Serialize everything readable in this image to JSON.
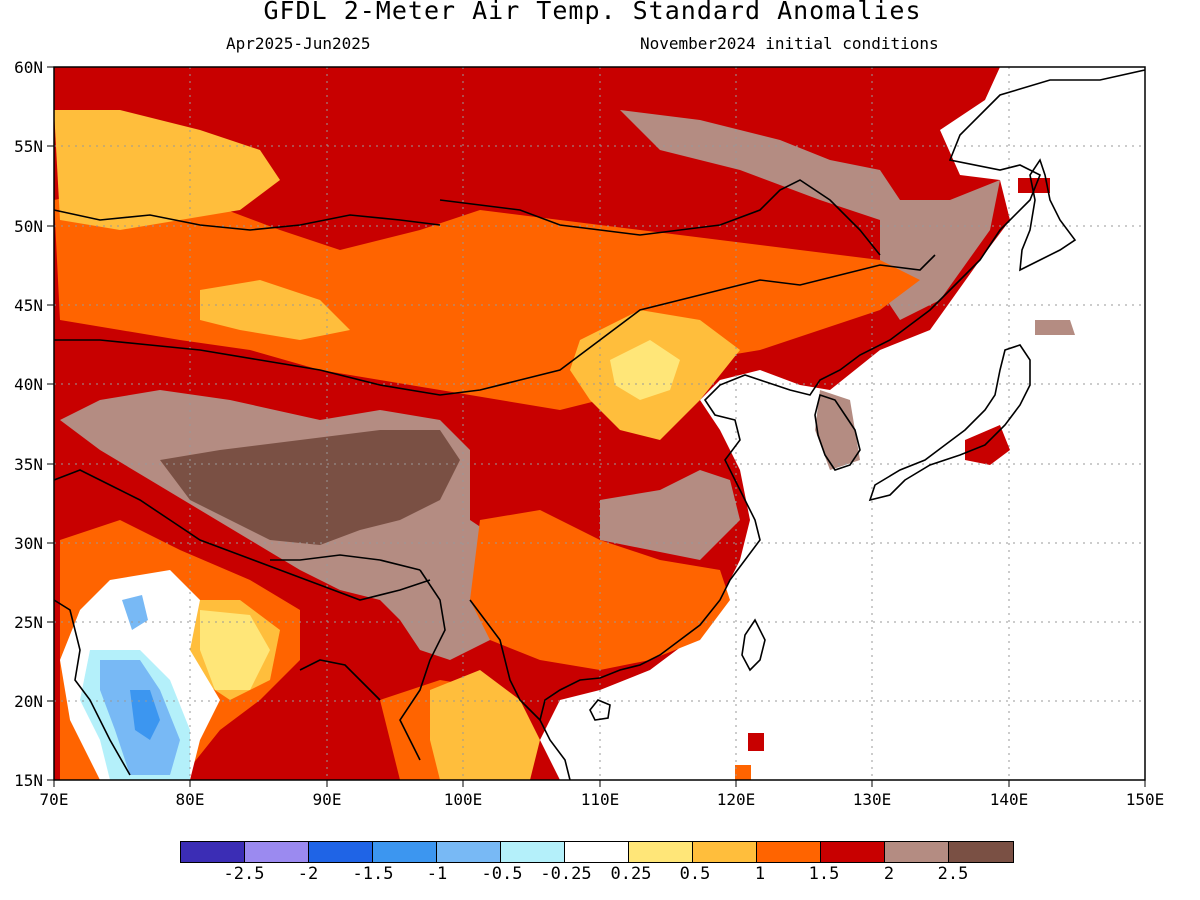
{
  "header": {
    "title": "GFDL 2-Meter Air Temp. Standard Anomalies",
    "period": "Apr2025-Jun2025",
    "init": "November2024 initial conditions"
  },
  "map": {
    "lon_range": [
      70,
      150
    ],
    "lat_range": [
      15,
      60
    ],
    "lat_labels": [
      "60N",
      "55N",
      "50N",
      "45N",
      "40N",
      "35N",
      "30N",
      "25N",
      "20N",
      "15N"
    ],
    "lon_labels": [
      "70E",
      "80E",
      "90E",
      "100E",
      "110E",
      "120E",
      "130E",
      "140E",
      "150E"
    ]
  },
  "colorbar": {
    "colors": [
      "#3b2db5",
      "#9b8af0",
      "#1f64e6",
      "#3c96f0",
      "#78b9f5",
      "#b4f0fa",
      "#ffffff",
      "#ffe678",
      "#ffbe3c",
      "#ff6400",
      "#c80000",
      "#b48c82",
      "#7a5044"
    ],
    "labels": [
      "-2.5",
      "-2",
      "-1.5",
      "-1",
      "-0.5",
      "-0.25",
      "0.25",
      "0.5",
      "1",
      "1.5",
      "2",
      "2.5"
    ]
  }
}
